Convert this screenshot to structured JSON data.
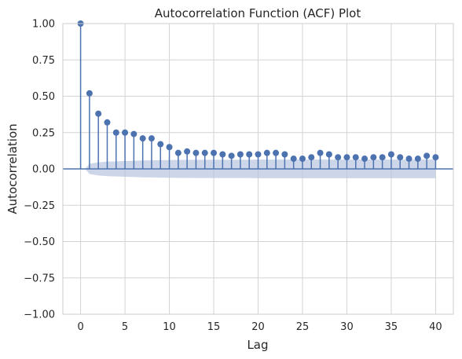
{
  "chart_data": {
    "type": "scatter",
    "subtype": "stem",
    "title": "Autocorrelation Function (ACF) Plot",
    "xlabel": "Lag",
    "ylabel": "Autocorrelation",
    "xlim": [
      -2,
      42
    ],
    "ylim": [
      -1.0,
      1.0
    ],
    "grid": true,
    "x_ticks": [
      0,
      5,
      10,
      15,
      20,
      25,
      30,
      35,
      40
    ],
    "x_tick_labels": [
      "0",
      "5",
      "10",
      "15",
      "20",
      "25",
      "30",
      "35",
      "40"
    ],
    "y_ticks": [
      -1.0,
      -0.75,
      -0.5,
      -0.25,
      0.0,
      0.25,
      0.5,
      0.75,
      1.0
    ],
    "y_tick_labels": [
      "−1.00",
      "−0.75",
      "−0.50",
      "−0.25",
      "0.00",
      "0.25",
      "0.50",
      "0.75",
      "1.00"
    ],
    "lags": [
      0,
      1,
      2,
      3,
      4,
      5,
      6,
      7,
      8,
      9,
      10,
      11,
      12,
      13,
      14,
      15,
      16,
      17,
      18,
      19,
      20,
      21,
      22,
      23,
      24,
      25,
      26,
      27,
      28,
      29,
      30,
      31,
      32,
      33,
      34,
      35,
      36,
      37,
      38,
      39,
      40
    ],
    "values": [
      1.0,
      0.52,
      0.38,
      0.32,
      0.25,
      0.25,
      0.24,
      0.21,
      0.21,
      0.17,
      0.15,
      0.11,
      0.12,
      0.11,
      0.11,
      0.11,
      0.1,
      0.09,
      0.1,
      0.1,
      0.1,
      0.11,
      0.11,
      0.1,
      0.07,
      0.07,
      0.08,
      0.11,
      0.1,
      0.08,
      0.08,
      0.08,
      0.07,
      0.08,
      0.08,
      0.1,
      0.08,
      0.07,
      0.07,
      0.09,
      0.08
    ],
    "confidence_band": {
      "lags": [
        0,
        1,
        2,
        3,
        4,
        5,
        6,
        7,
        8,
        9,
        10,
        11,
        12,
        13,
        14,
        15,
        16,
        17,
        18,
        19,
        20,
        21,
        22,
        23,
        24,
        25,
        26,
        27,
        28,
        29,
        30,
        31,
        32,
        33,
        34,
        35,
        36,
        37,
        38,
        39,
        40
      ],
      "upper": [
        0.0,
        0.035,
        0.045,
        0.05,
        0.052,
        0.054,
        0.056,
        0.058,
        0.059,
        0.06,
        0.061,
        0.062,
        0.062,
        0.063,
        0.063,
        0.063,
        0.063,
        0.063,
        0.063,
        0.063,
        0.064,
        0.064,
        0.064,
        0.064,
        0.064,
        0.064,
        0.064,
        0.064,
        0.064,
        0.064,
        0.064,
        0.064,
        0.064,
        0.064,
        0.064,
        0.064,
        0.064,
        0.064,
        0.064,
        0.064,
        0.064
      ]
    },
    "colors": {
      "stem": "#4c72b0",
      "band": "#b6c4de",
      "grid": "#d3d3d3",
      "zero_line": "#4c72b0"
    }
  }
}
